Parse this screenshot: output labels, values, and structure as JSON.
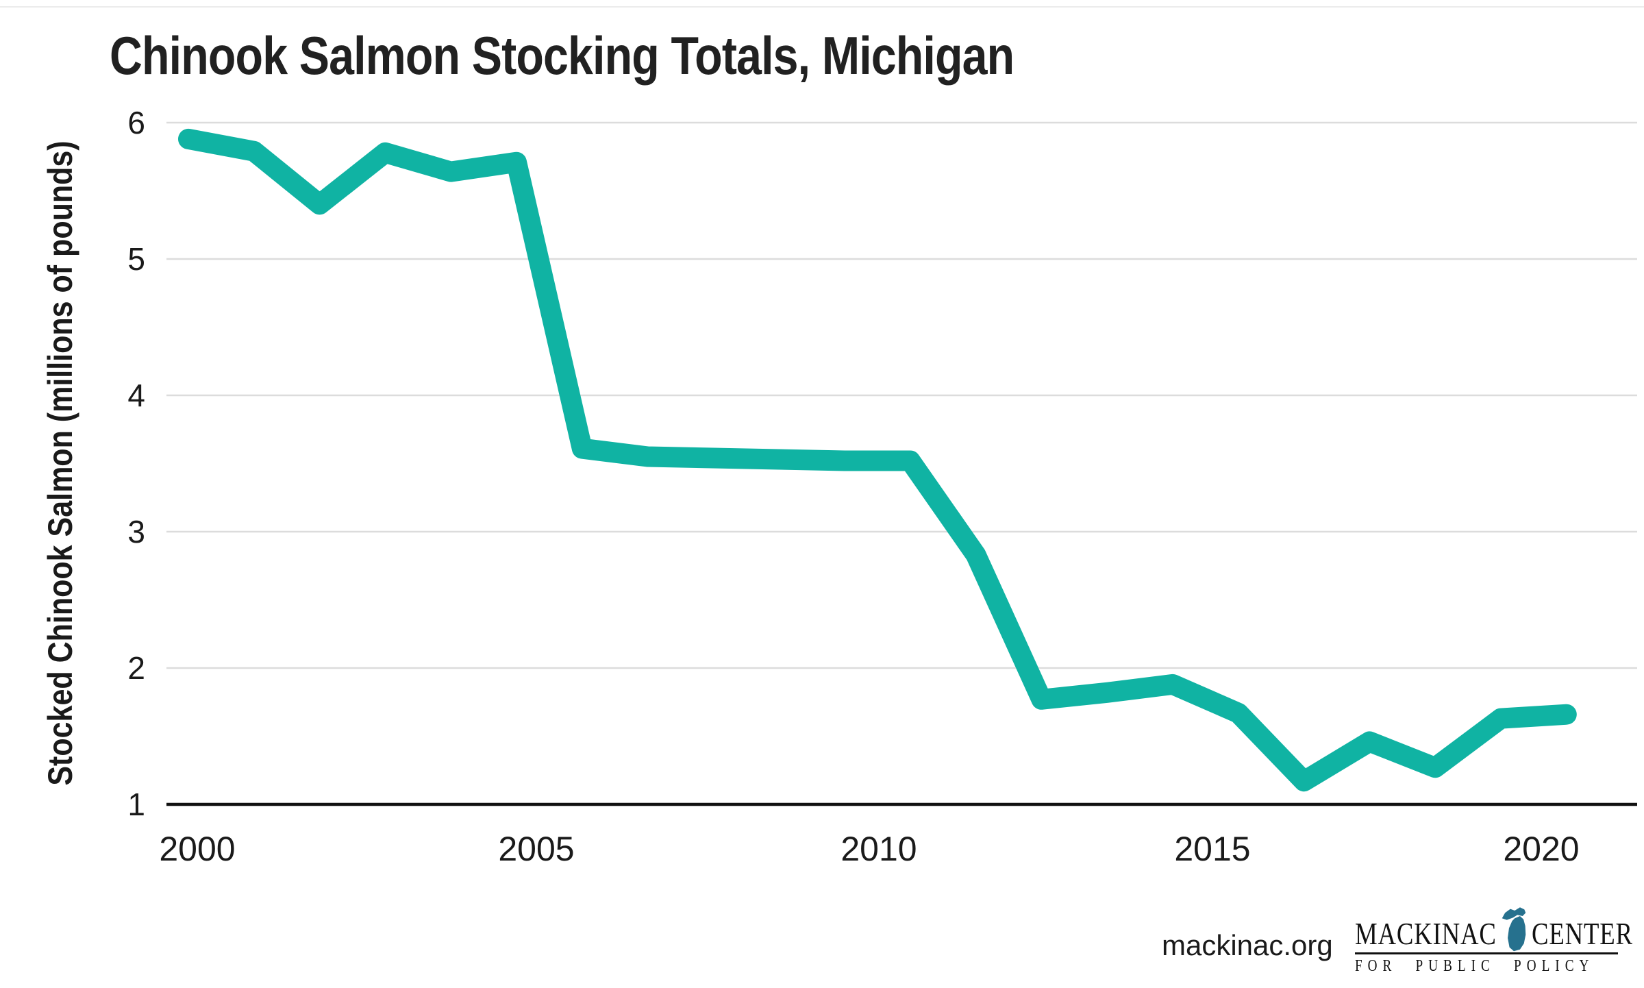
{
  "header": {
    "title": "Chinook Salmon Stocking Totals, Michigan"
  },
  "chart_data": {
    "type": "line",
    "title": "Chinook Salmon Stocking Totals, Michigan",
    "xlabel": "",
    "ylabel": "Stocked Chinook Salmon  (millions of pounds)",
    "x": [
      2000,
      2001,
      2002,
      2003,
      2004,
      2005,
      2006,
      2007,
      2008,
      2009,
      2010,
      2011,
      2012,
      2013,
      2014,
      2015,
      2016,
      2017,
      2018,
      2019,
      2020,
      2021
    ],
    "values": [
      5.88,
      5.79,
      5.4,
      5.78,
      5.64,
      5.71,
      3.61,
      3.55,
      3.54,
      3.53,
      3.52,
      3.52,
      2.83,
      1.77,
      1.82,
      1.88,
      1.67,
      1.17,
      1.46,
      1.27,
      1.63,
      1.66
    ],
    "series_name": "Stocked Chinook Salmon (millions of pounds)",
    "ylim": [
      1,
      6
    ],
    "y_ticks": [
      6,
      5,
      4,
      3,
      2,
      1
    ],
    "y_tick_labels": [
      "6",
      "5",
      "4",
      "3",
      "2",
      "1"
    ],
    "x_ticks": [
      2000,
      2005,
      2010,
      2015,
      2020
    ],
    "x_tick_labels": [
      "2000",
      "2005",
      "2010",
      "2015",
      "2020"
    ],
    "grid": "horizontal",
    "legend": "none",
    "line_color": "#10B3A3"
  },
  "colors": {
    "line": "#10B3A3",
    "grid": "#dcdcdc",
    "axis": "#111111",
    "text": "#1a1a1a",
    "title": "#212121",
    "michigan_icon": "#26718E"
  },
  "footer": {
    "site": "mackinac.org",
    "logo": {
      "word1": "MACKINAC",
      "word2": "CENTER",
      "tagline": "FOR PUBLIC POLICY",
      "icon": "michigan-map-icon",
      "icon_color": "#26718E"
    }
  }
}
